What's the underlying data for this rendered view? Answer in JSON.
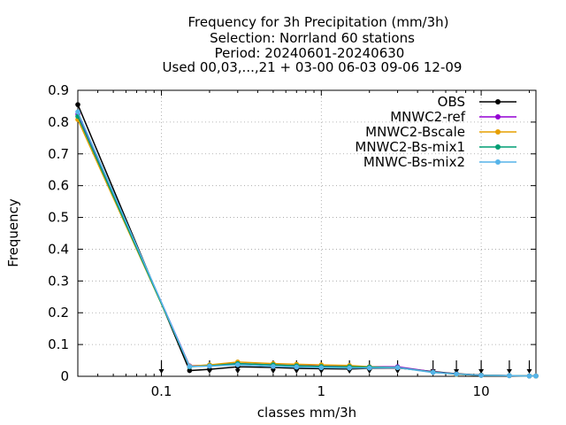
{
  "chart_data": {
    "type": "line",
    "title_lines": [
      "Frequency  for 3h Precipitation (mm/3h)",
      "Selection: Norrland     60 stations",
      "Period: 20240601-20240630",
      "Used 00,03,...,21 + 03-00 06-03 09-06 12-09"
    ],
    "xlabel": "classes mm/3h",
    "ylabel": "Frequency",
    "x_scale": "log",
    "xlim": [
      0.03,
      22
    ],
    "ylim": [
      0,
      0.9
    ],
    "x_ticks": [
      {
        "value": 0.1,
        "label": "0.1"
      },
      {
        "value": 1,
        "label": "1"
      },
      {
        "value": 10,
        "label": "10"
      }
    ],
    "y_ticks": [
      {
        "value": 0,
        "label": "0"
      },
      {
        "value": 0.1,
        "label": "0.1"
      },
      {
        "value": 0.2,
        "label": "0.2"
      },
      {
        "value": 0.3,
        "label": "0.3"
      },
      {
        "value": 0.4,
        "label": "0.4"
      },
      {
        "value": 0.5,
        "label": "0.5"
      },
      {
        "value": 0.6,
        "label": "0.6"
      },
      {
        "value": 0.7,
        "label": "0.7"
      },
      {
        "value": 0.8,
        "label": "0.8"
      },
      {
        "value": 0.9,
        "label": "0.9"
      }
    ],
    "grid": true,
    "legend_position": "top-right",
    "class_markers_x": [
      0.1,
      0.2,
      0.3,
      0.5,
      0.7,
      1,
      1.5,
      2,
      3,
      5,
      7,
      10,
      15,
      20
    ],
    "x": [
      0.03,
      0.15,
      0.2,
      0.3,
      0.5,
      0.7,
      1,
      1.5,
      2,
      3,
      5,
      7,
      10,
      15,
      20,
      22
    ],
    "series": [
      {
        "name": "OBS",
        "color": "#000000",
        "values": [
          0.855,
          0.018,
          0.022,
          0.03,
          0.028,
          0.025,
          0.024,
          0.023,
          0.025,
          0.026,
          0.015,
          0.008,
          0.004,
          0.002,
          0.001,
          0.001
        ]
      },
      {
        "name": "MNWC2-ref",
        "color": "#9400d3",
        "values": [
          0.825,
          0.033,
          0.035,
          0.04,
          0.036,
          0.034,
          0.032,
          0.031,
          0.03,
          0.03,
          0.014,
          0.007,
          0.003,
          0.002,
          0.001,
          0.001
        ]
      },
      {
        "name": "MNWC2-Bscale",
        "color": "#e69f00",
        "values": [
          0.808,
          0.032,
          0.036,
          0.045,
          0.04,
          0.038,
          0.036,
          0.034,
          0.03,
          0.027,
          0.013,
          0.006,
          0.003,
          0.002,
          0.001,
          0.001
        ]
      },
      {
        "name": "MNWC2-Bs-mix1",
        "color": "#009e73",
        "values": [
          0.818,
          0.03,
          0.033,
          0.04,
          0.036,
          0.033,
          0.031,
          0.03,
          0.029,
          0.028,
          0.013,
          0.007,
          0.003,
          0.002,
          0.001,
          0.001
        ]
      },
      {
        "name": "MNWC-Bs-mix2",
        "color": "#56b4e9",
        "values": [
          0.832,
          0.031,
          0.032,
          0.036,
          0.031,
          0.029,
          0.027,
          0.026,
          0.026,
          0.027,
          0.012,
          0.007,
          0.003,
          0.002,
          0.001,
          0.001
        ]
      }
    ]
  }
}
